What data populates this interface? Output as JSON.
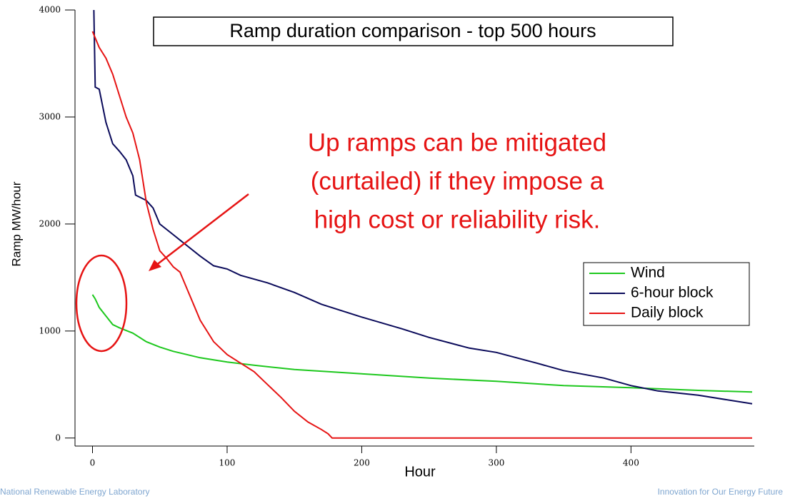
{
  "chart_data": {
    "type": "line",
    "title": "Ramp duration comparison - top 500 hours",
    "xlabel": "Hour",
    "ylabel": "Ramp MW/hour",
    "annotation": [
      "Up ramps can be mitigated",
      "(curtailed) if they impose a",
      "high cost or reliability risk."
    ],
    "xlim": [
      -13,
      490
    ],
    "ylim": [
      -75,
      4000
    ],
    "xticks": [
      0,
      100,
      200,
      300,
      400
    ],
    "yticks": [
      0,
      1000,
      2000,
      3000,
      4000
    ],
    "legend": "right",
    "series": [
      {
        "name": "Wind",
        "color": "#1ec81e",
        "x": [
          0,
          2,
          5,
          10,
          15,
          20,
          30,
          40,
          50,
          60,
          80,
          100,
          120,
          150,
          200,
          250,
          300,
          350,
          400,
          450,
          490
        ],
        "values": [
          1340,
          1300,
          1220,
          1140,
          1060,
          1030,
          980,
          900,
          850,
          810,
          750,
          710,
          680,
          640,
          600,
          560,
          530,
          490,
          470,
          445,
          430
        ]
      },
      {
        "name": "6-hour block",
        "color": "#0a0a5a",
        "x": [
          1,
          2,
          5,
          10,
          15,
          20,
          25,
          30,
          32,
          40,
          45,
          50,
          60,
          70,
          80,
          90,
          100,
          110,
          130,
          150,
          170,
          200,
          230,
          250,
          280,
          300,
          330,
          350,
          380,
          400,
          420,
          450,
          490
        ],
        "values": [
          4000,
          3280,
          3260,
          2950,
          2750,
          2680,
          2600,
          2450,
          2270,
          2220,
          2150,
          2000,
          1900,
          1800,
          1700,
          1610,
          1580,
          1520,
          1450,
          1360,
          1250,
          1130,
          1020,
          940,
          840,
          800,
          700,
          630,
          560,
          490,
          440,
          400,
          320
        ]
      },
      {
        "name": "Daily block",
        "color": "#e61414",
        "x": [
          0,
          5,
          10,
          15,
          20,
          25,
          30,
          35,
          40,
          45,
          50,
          55,
          60,
          65,
          70,
          75,
          80,
          90,
          100,
          110,
          120,
          130,
          140,
          150,
          160,
          170,
          175,
          178,
          200,
          300,
          400,
          490
        ],
        "values": [
          3800,
          3650,
          3550,
          3400,
          3200,
          3000,
          2850,
          2600,
          2200,
          1950,
          1750,
          1680,
          1600,
          1550,
          1400,
          1250,
          1100,
          900,
          780,
          700,
          620,
          500,
          380,
          250,
          150,
          80,
          40,
          0,
          0,
          0,
          0,
          0
        ]
      }
    ]
  },
  "footer": {
    "left": "National Renewable Energy Laboratory",
    "right": "Innovation for Our Energy Future"
  }
}
